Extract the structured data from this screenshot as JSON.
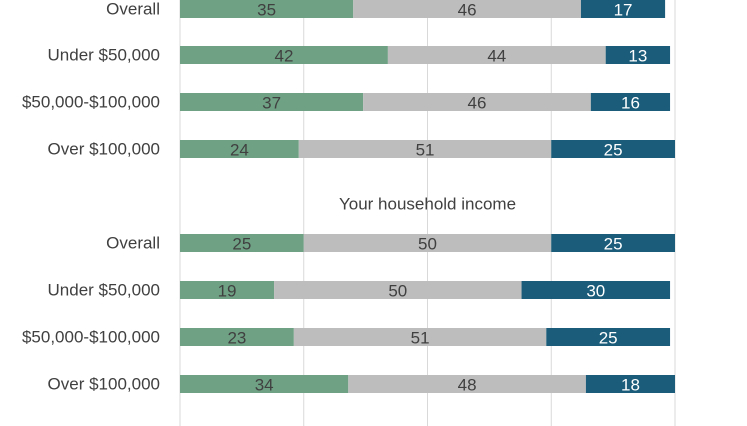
{
  "chart_data": {
    "type": "bar",
    "orientation": "horizontal",
    "stacked": true,
    "xlim": [
      0,
      100
    ],
    "grid": true,
    "colors": [
      "#6fa285",
      "#bdbdbd",
      "#1a5c7a"
    ],
    "value_label_colors": [
      "#404040",
      "#404040",
      "#ffffff"
    ],
    "groups": [
      {
        "title": "",
        "categories": [
          "Overall",
          "Under $50,000",
          "$50,000-$100,000",
          "Over $100,000"
        ],
        "series": [
          {
            "values": [
              35,
              42,
              37,
              24
            ]
          },
          {
            "values": [
              46,
              44,
              46,
              51
            ]
          },
          {
            "values": [
              17,
              13,
              16,
              25
            ]
          }
        ]
      },
      {
        "title": "Your household income",
        "categories": [
          "Overall",
          "Under $50,000",
          "$50,000-$100,000",
          "Over $100,000"
        ],
        "series": [
          {
            "values": [
              25,
              19,
              23,
              34
            ]
          },
          {
            "values": [
              50,
              50,
              51,
              48
            ]
          },
          {
            "values": [
              25,
              30,
              25,
              18
            ]
          }
        ]
      }
    ]
  }
}
